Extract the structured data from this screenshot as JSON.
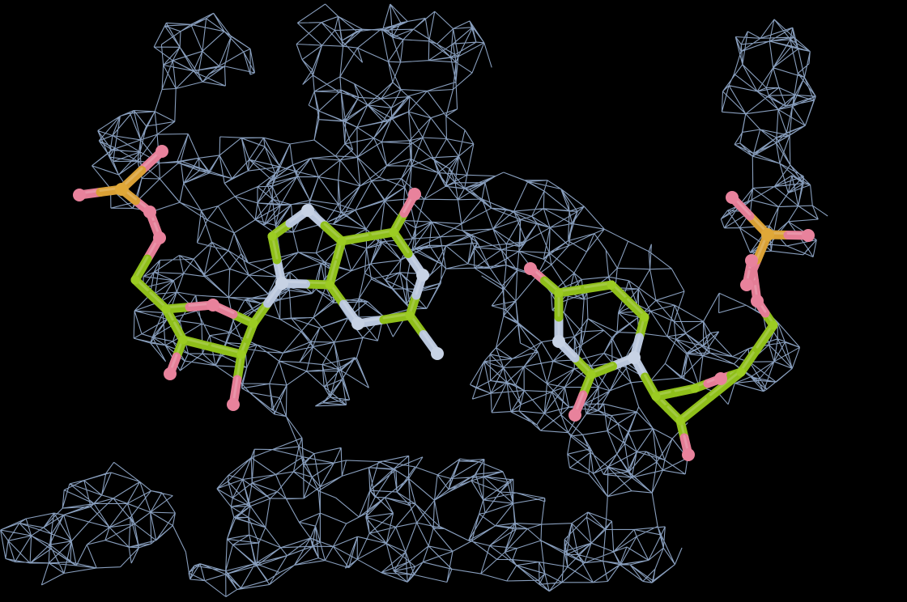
{
  "scene": {
    "kind": "electron-density-map-with-nucleotide-model",
    "background_color": "#000000",
    "mesh_color": "#8fa7c7",
    "bond_colors": {
      "carbon": "#8fbf1a",
      "nitrogen": "#b9c6dc",
      "oxygen": "#e47d96",
      "phosphorus": "#d9a035"
    },
    "atom_colors": {
      "oxygen": "#e8829c",
      "nitrogen": "#c7d2e4",
      "phosphorus": "#e0a838",
      "carbon": "#9ccc22"
    },
    "molecules": [
      "purine-nucleotide",
      "pyrimidine-nucleotide"
    ]
  }
}
